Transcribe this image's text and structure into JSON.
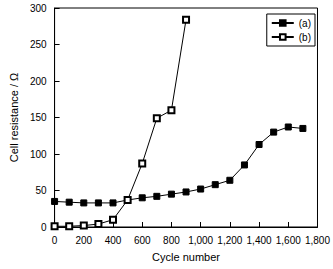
{
  "chart_data": {
    "type": "line",
    "x_label": "Cycle number",
    "y_label": "Cell resistance / Ω",
    "xlim": [
      0,
      1800
    ],
    "xticks": [
      0,
      200,
      400,
      600,
      800,
      1000,
      1200,
      1400,
      1600,
      1800
    ],
    "ylim": [
      0,
      300
    ],
    "yticks": [
      0,
      50,
      100,
      150,
      200,
      250,
      300
    ],
    "grid": false,
    "legend": "upper right",
    "series": [
      {
        "name": "(a)",
        "color": "#000000",
        "marker": "square",
        "line_style": "solid",
        "x": [
          0,
          100,
          200,
          300,
          400,
          500,
          600,
          700,
          800,
          900,
          1000,
          1100,
          1200,
          1300,
          1400,
          1500,
          1600,
          1700
        ],
        "values": [
          35,
          34,
          33,
          33,
          33,
          37,
          40,
          42,
          45,
          48,
          52,
          58,
          64,
          85,
          113,
          130,
          137,
          135
        ]
      },
      {
        "name": "(b)",
        "color": "#000000",
        "marker": "open_square",
        "line_style": "solid",
        "x": [
          0,
          100,
          200,
          300,
          400,
          500,
          600,
          700,
          800,
          900
        ],
        "values": [
          1,
          1,
          2,
          4,
          10,
          37,
          87,
          149,
          160,
          284
        ]
      }
    ]
  }
}
